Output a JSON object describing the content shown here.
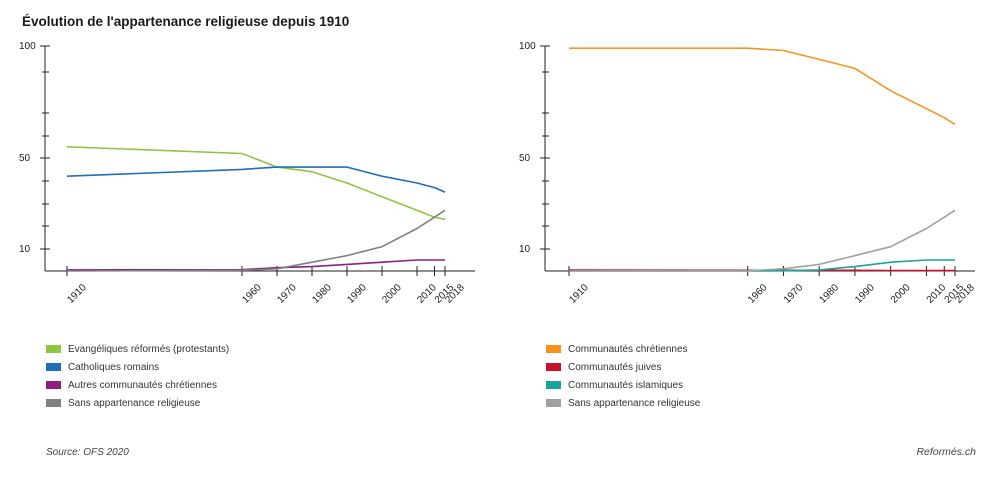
{
  "title": "Évolution de l'appartenance religieuse depuis 1910",
  "source": "Source: OFS 2020",
  "brand": "Reformés.ch",
  "chart_data": [
    {
      "type": "line",
      "title": "",
      "x": [
        1910,
        1960,
        1970,
        1980,
        1990,
        2000,
        2010,
        2015,
        2018
      ],
      "x_tick_labels": [
        "1910",
        "1960",
        "1970",
        "1980",
        "1990",
        "2000",
        "2010",
        "2015",
        "2018"
      ],
      "y_ticks": [
        10,
        50,
        100
      ],
      "ylim": [
        0,
        100
      ],
      "legend_position": "below",
      "series": [
        {
          "name": "Evangéliques réformés (protestants)",
          "color": "#8dc63f",
          "values": [
            55,
            52,
            46,
            44,
            39,
            33,
            27,
            24,
            23
          ]
        },
        {
          "name": "Catholiques romains",
          "color": "#1d6fb8",
          "values": [
            42,
            45,
            46,
            46,
            46,
            42,
            39,
            37,
            35
          ]
        },
        {
          "name": "Autres communautés chrétiennes",
          "color": "#8e1f82",
          "values": [
            0.5,
            0.6,
            1.5,
            2,
            3,
            4,
            5,
            5,
            5
          ]
        },
        {
          "name": "Sans appartenance religieuse",
          "color": "#808080",
          "values": [
            0,
            0.3,
            1,
            4,
            7,
            11,
            19,
            24,
            27
          ]
        }
      ]
    },
    {
      "type": "line",
      "title": "",
      "x": [
        1910,
        1960,
        1970,
        1980,
        1990,
        2000,
        2010,
        2015,
        2018
      ],
      "x_tick_labels": [
        "1910",
        "1960",
        "1970",
        "1980",
        "1990",
        "2000",
        "2010",
        "2015",
        "2018"
      ],
      "y_ticks": [
        10,
        50,
        100
      ],
      "ylim": [
        0,
        100
      ],
      "legend_position": "below",
      "series": [
        {
          "name": "Communautés chrétiennes",
          "color": "#f7931e",
          "values": [
            99,
            99,
            98,
            94,
            90,
            80,
            72,
            68,
            65
          ]
        },
        {
          "name": "Communautés juives",
          "color": "#c8102e",
          "values": [
            0.4,
            0.3,
            0.3,
            0.3,
            0.3,
            0.2,
            0.2,
            0.2,
            0.2
          ]
        },
        {
          "name": "Communautés islamiques",
          "color": "#1aa39a",
          "values": [
            0,
            0,
            0.1,
            0.5,
            2,
            4,
            5,
            5,
            5
          ]
        },
        {
          "name": "Sans appartenance religieuse",
          "color": "#a0a0a0",
          "values": [
            0,
            0.1,
            1,
            3,
            7,
            11,
            19,
            24,
            27
          ]
        }
      ]
    }
  ]
}
